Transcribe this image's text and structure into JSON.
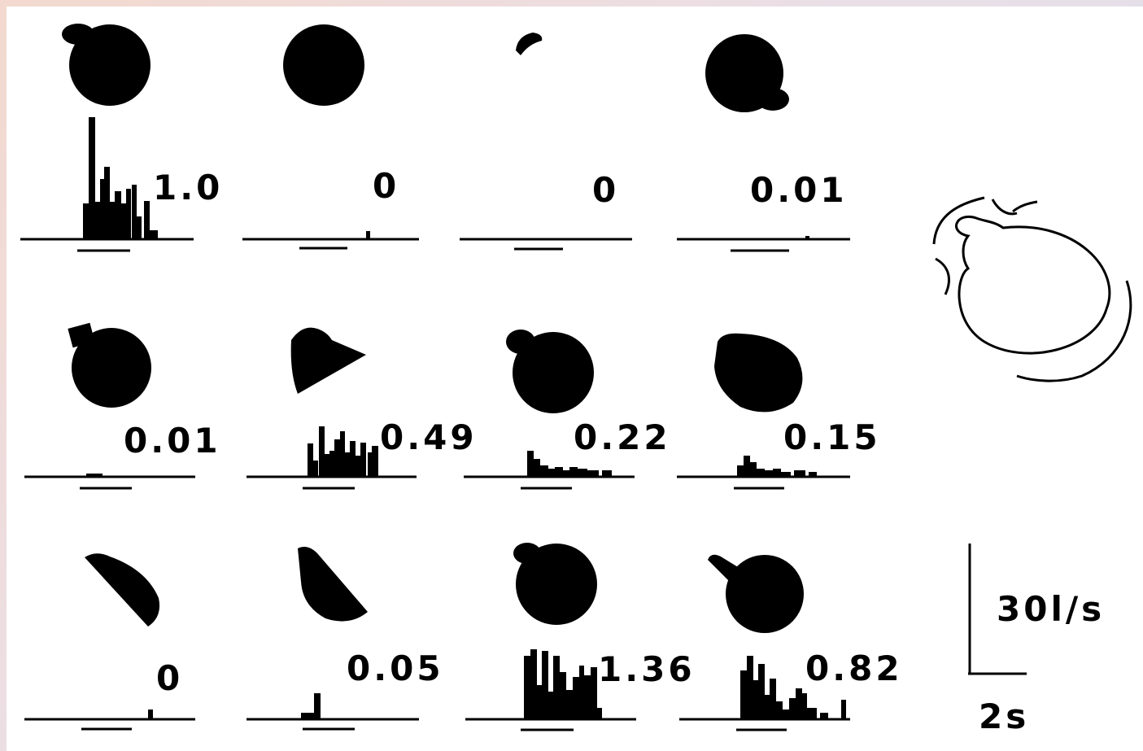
{
  "panels": [
    {
      "value": "1.0"
    },
    {
      "value": "0"
    },
    {
      "value": "0"
    },
    {
      "value": "0.01"
    },
    {
      "value": "0.01"
    },
    {
      "value": "0.49"
    },
    {
      "value": "0.22"
    },
    {
      "value": "0.15"
    },
    {
      "value": "0"
    },
    {
      "value": "0.05"
    },
    {
      "value": "1.36"
    },
    {
      "value": "0.82"
    }
  ],
  "scale_bar": {
    "vertical_label": "30l/s",
    "horizontal_label": "2s"
  }
}
